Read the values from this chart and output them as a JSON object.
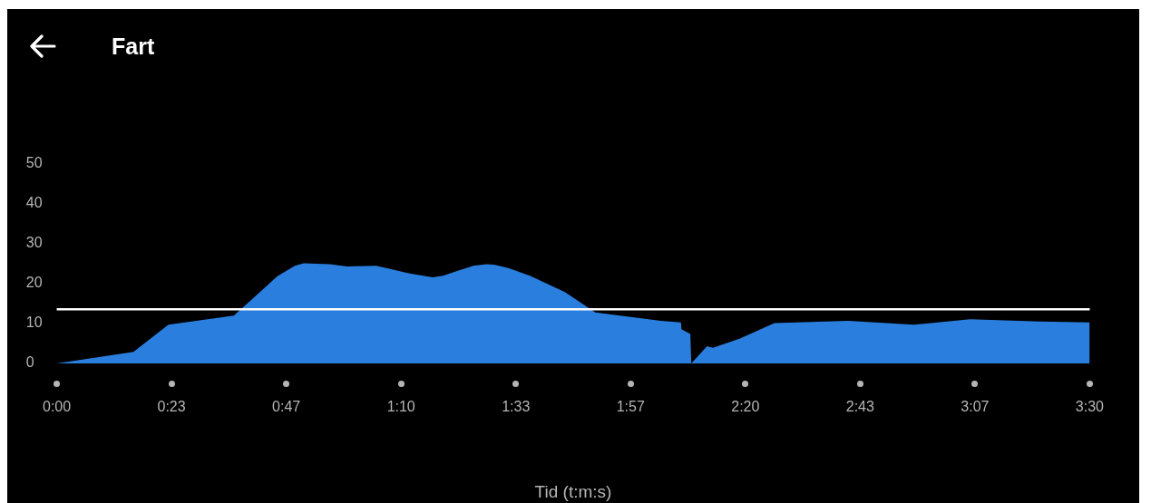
{
  "chart_data": {
    "type": "area",
    "title": "Fart",
    "xlabel": "Tid (t:m:s)",
    "xlim": [
      0,
      210
    ],
    "xticks": [
      {
        "value": 0,
        "label": "0:00"
      },
      {
        "value": 23.33,
        "label": "0:23"
      },
      {
        "value": 46.67,
        "label": "0:47"
      },
      {
        "value": 70,
        "label": "1:10"
      },
      {
        "value": 93.33,
        "label": "1:33"
      },
      {
        "value": 116.67,
        "label": "1:57"
      },
      {
        "value": 140,
        "label": "2:20"
      },
      {
        "value": 163.33,
        "label": "2:43"
      },
      {
        "value": 186.67,
        "label": "3:07"
      },
      {
        "value": 210,
        "label": "3:30"
      }
    ],
    "ylim": [
      0,
      50
    ],
    "yticks": [
      0,
      10,
      20,
      30,
      40,
      50
    ],
    "grid": false,
    "legend": false,
    "x": [
      0,
      15.6,
      22.7,
      36,
      40.4,
      44.8,
      48.4,
      50.2,
      55.5,
      59,
      64.9,
      67,
      71.5,
      76.4,
      78.5,
      84.7,
      87.4,
      89.1,
      91.8,
      96.2,
      103.3,
      109.5,
      122.8,
      126.9,
      127,
      128.8,
      129,
      132.2,
      133.4,
      138.8,
      145.9,
      160.9,
      174.2,
      185.7,
      199.9,
      210
    ],
    "series": [
      {
        "color": "#2a7fde",
        "values": [
          0,
          2.9,
          9.7,
          12,
          16.9,
          21.8,
          24.5,
          25.1,
          24.9,
          24.3,
          24.5,
          23.9,
          22.6,
          21.6,
          22,
          24.5,
          24.9,
          24.7,
          23.9,
          22,
          17.9,
          12.8,
          10.7,
          10.3,
          8.6,
          7.4,
          0,
          4.3,
          3.9,
          6.2,
          10.1,
          10.7,
          9.7,
          11.1,
          10.5,
          10.3
        ]
      }
    ],
    "ref_lines": [
      {
        "axis": "y",
        "value": 13.6,
        "color": "#ffffff"
      }
    ]
  }
}
